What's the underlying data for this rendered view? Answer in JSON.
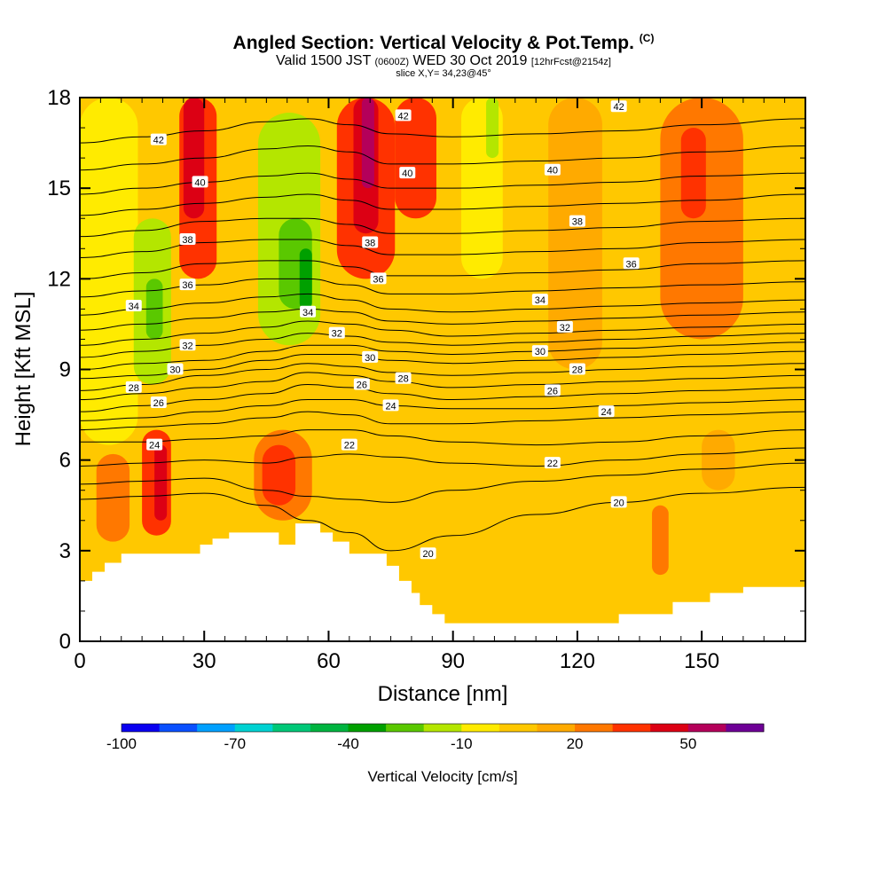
{
  "header": {
    "title": "Angled Section: Vertical Velocity & Pot.Temp.",
    "title_suffix": "(C)",
    "valid_prefix": "Valid 1500 JST",
    "valid_utc": "(0600Z)",
    "valid_date": "WED 30 Oct 2019",
    "valid_fcst": "[12hrFcst@2154z]",
    "slice": "slice X,Y= 34,23@45°"
  },
  "chart_data": {
    "type": "heatmap",
    "title": "Angled Section: Vertical Velocity & Pot.Temp. (C)",
    "xlabel": "Distance [nm]",
    "ylabel": "Height [Kft MSL]",
    "xlim": [
      0,
      175
    ],
    "ylim": [
      0,
      18
    ],
    "xticks": [
      0,
      30,
      60,
      90,
      120,
      150
    ],
    "yticks": [
      0,
      3,
      6,
      9,
      12,
      15,
      18
    ],
    "grid": false,
    "colorbar": {
      "label": "Vertical Velocity [cm/s]",
      "tick_values": [
        -100,
        -70,
        -40,
        -10,
        20,
        50
      ],
      "tick_labels": [
        "-100",
        "-70",
        "-40",
        "-10",
        "20",
        "50"
      ],
      "bins": [
        -100,
        -90,
        -80,
        -70,
        -60,
        -50,
        -40,
        -30,
        -20,
        -10,
        0,
        10,
        20,
        30,
        40,
        50,
        60
      ],
      "colors": [
        "#0a00f0",
        "#0a50ff",
        "#00a0ff",
        "#00d2d2",
        "#00c878",
        "#00b440",
        "#00a000",
        "#5ac800",
        "#b4e600",
        "#ffeb00",
        "#ffc800",
        "#ffaa00",
        "#ff7800",
        "#ff3200",
        "#dc0014",
        "#b4005a",
        "#6e0096"
      ]
    },
    "w_field": {
      "background": 0,
      "cells": [
        {
          "x": [
            0,
            175
          ],
          "z": [
            0,
            18
          ],
          "w": 0
        },
        {
          "x": [
            0,
            14
          ],
          "z": [
            6.5,
            18
          ],
          "w": -10
        },
        {
          "x": [
            13,
            22
          ],
          "z": [
            8.5,
            14
          ],
          "w": -20
        },
        {
          "x": [
            16,
            20
          ],
          "z": [
            10,
            12
          ],
          "w": -30
        },
        {
          "x": [
            24,
            33
          ],
          "z": [
            12,
            18
          ],
          "w": 30
        },
        {
          "x": [
            25,
            30
          ],
          "z": [
            14,
            18
          ],
          "w": 40
        },
        {
          "x": [
            43,
            58
          ],
          "z": [
            9.8,
            17.5
          ],
          "w": -20
        },
        {
          "x": [
            48,
            56
          ],
          "z": [
            11,
            14
          ],
          "w": -30
        },
        {
          "x": [
            53,
            56
          ],
          "z": [
            11,
            13
          ],
          "w": -40
        },
        {
          "x": [
            62,
            76
          ],
          "z": [
            12,
            18
          ],
          "w": 30
        },
        {
          "x": [
            66,
            72
          ],
          "z": [
            13.5,
            18
          ],
          "w": 40
        },
        {
          "x": [
            68,
            71
          ],
          "z": [
            15,
            18
          ],
          "w": 50
        },
        {
          "x": [
            76,
            86
          ],
          "z": [
            14,
            18
          ],
          "w": 30
        },
        {
          "x": [
            92,
            102
          ],
          "z": [
            12,
            18
          ],
          "w": -10
        },
        {
          "x": [
            98,
            101
          ],
          "z": [
            16,
            18
          ],
          "w": -20
        },
        {
          "x": [
            113,
            126
          ],
          "z": [
            9,
            18
          ],
          "w": 10
        },
        {
          "x": [
            140,
            160
          ],
          "z": [
            10,
            18
          ],
          "w": 20
        },
        {
          "x": [
            145,
            151
          ],
          "z": [
            14,
            17
          ],
          "w": 30
        },
        {
          "x": [
            4,
            12
          ],
          "z": [
            3.3,
            6.2
          ],
          "w": 20
        },
        {
          "x": [
            15,
            22
          ],
          "z": [
            3.5,
            7
          ],
          "w": 30
        },
        {
          "x": [
            18,
            21
          ],
          "z": [
            4,
            6.5
          ],
          "w": 40
        },
        {
          "x": [
            42,
            56
          ],
          "z": [
            4,
            7
          ],
          "w": 20
        },
        {
          "x": [
            44,
            52
          ],
          "z": [
            4.5,
            6.5
          ],
          "w": 30
        },
        {
          "x": [
            138,
            142
          ],
          "z": [
            2.2,
            4.5
          ],
          "w": 20
        },
        {
          "x": [
            150,
            158
          ],
          "z": [
            5,
            7
          ],
          "w": 10
        }
      ]
    },
    "terrain_kft": {
      "x": [
        0,
        3,
        3,
        6,
        6,
        10,
        10,
        29,
        29,
        32,
        32,
        36,
        36,
        48,
        48,
        52,
        52,
        58,
        58,
        61,
        61,
        65,
        65,
        74,
        74,
        77,
        77,
        80,
        80,
        82,
        82,
        85,
        85,
        88,
        88,
        130,
        130,
        143,
        143,
        152,
        152,
        160,
        160,
        175
      ],
      "z": [
        2,
        2,
        2.3,
        2.3,
        2.6,
        2.6,
        2.9,
        2.9,
        3.2,
        3.2,
        3.4,
        3.4,
        3.6,
        3.6,
        3.2,
        3.2,
        3.9,
        3.9,
        3.6,
        3.6,
        3.3,
        3.3,
        2.9,
        2.9,
        2.5,
        2.5,
        2.0,
        2.0,
        1.6,
        1.6,
        1.2,
        1.2,
        0.9,
        0.9,
        0.6,
        0.6,
        0.9,
        0.9,
        1.3,
        1.3,
        1.6,
        1.6,
        1.8,
        1.8
      ]
    },
    "theta_contours_c": {
      "levels": [
        20,
        21,
        22,
        23,
        24,
        25,
        26,
        27,
        28,
        29,
        30,
        31,
        32,
        33,
        34,
        35,
        36,
        37,
        38,
        39,
        40,
        41,
        42
      ],
      "x": [
        0,
        15,
        30,
        45,
        55,
        65,
        75,
        90,
        110,
        130,
        150,
        175
      ],
      "heights_kft": [
        [
          4.7,
          4.8,
          4.9,
          4.5,
          4.0,
          3.6,
          3.0,
          3.5,
          4.2,
          4.6,
          4.9,
          5.1
        ],
        [
          5.2,
          5.3,
          5.4,
          5.0,
          4.8,
          4.7,
          4.6,
          5.0,
          5.3,
          5.5,
          5.7,
          5.9
        ],
        [
          5.8,
          5.9,
          6.0,
          5.9,
          6.1,
          6.2,
          6.1,
          5.9,
          5.8,
          6.0,
          6.2,
          6.4
        ],
        [
          6.6,
          6.6,
          6.7,
          6.8,
          7.0,
          7.0,
          6.8,
          6.6,
          6.5,
          6.6,
          6.8,
          7.0
        ],
        [
          7.0,
          7.1,
          7.2,
          7.4,
          7.6,
          7.5,
          7.2,
          7.2,
          7.3,
          7.4,
          7.5,
          7.6
        ],
        [
          7.3,
          7.4,
          7.6,
          7.8,
          8.0,
          8.0,
          7.8,
          7.7,
          7.7,
          7.8,
          7.9,
          8.0
        ],
        [
          7.6,
          7.8,
          8.0,
          8.2,
          8.5,
          8.4,
          8.2,
          8.0,
          8.1,
          8.2,
          8.3,
          8.4
        ],
        [
          8.0,
          8.2,
          8.4,
          8.6,
          8.9,
          8.8,
          8.6,
          8.4,
          8.5,
          8.6,
          8.7,
          8.8
        ],
        [
          8.3,
          8.5,
          8.8,
          9.0,
          9.2,
          9.1,
          8.9,
          8.8,
          8.9,
          9.0,
          9.1,
          9.2
        ],
        [
          8.7,
          8.8,
          9.0,
          9.3,
          9.5,
          9.5,
          9.3,
          9.2,
          9.3,
          9.4,
          9.5,
          9.6
        ],
        [
          9.0,
          9.2,
          9.3,
          9.6,
          9.8,
          9.8,
          9.6,
          9.5,
          9.6,
          9.7,
          9.8,
          9.9
        ],
        [
          9.4,
          9.6,
          9.8,
          10.0,
          10.2,
          10.1,
          9.9,
          9.8,
          9.9,
          10.0,
          10.1,
          10.2
        ],
        [
          9.8,
          10.0,
          10.2,
          10.4,
          10.6,
          10.5,
          10.3,
          10.1,
          10.2,
          10.3,
          10.4,
          10.5
        ],
        [
          10.3,
          10.5,
          10.7,
          10.9,
          11.0,
          10.9,
          10.6,
          10.5,
          10.6,
          10.7,
          10.8,
          10.9
        ],
        [
          10.8,
          11.0,
          11.2,
          11.4,
          11.5,
          11.3,
          11.0,
          10.9,
          11.0,
          11.1,
          11.2,
          11.3
        ],
        [
          11.4,
          11.6,
          11.8,
          12.0,
          12.0,
          11.8,
          11.5,
          11.5,
          11.6,
          11.7,
          11.8,
          11.9
        ],
        [
          12.0,
          12.2,
          12.5,
          12.6,
          12.6,
          12.4,
          12.1,
          12.1,
          12.2,
          12.3,
          12.5,
          12.6
        ],
        [
          12.7,
          12.9,
          13.2,
          13.3,
          13.3,
          13.1,
          12.8,
          12.8,
          12.9,
          13.0,
          13.2,
          13.3
        ],
        [
          13.4,
          13.6,
          13.9,
          14.0,
          14.0,
          13.8,
          13.5,
          13.5,
          13.6,
          13.7,
          13.9,
          14.0
        ],
        [
          14.1,
          14.3,
          14.5,
          14.7,
          14.8,
          14.6,
          14.3,
          14.3,
          14.4,
          14.5,
          14.6,
          14.8
        ],
        [
          14.8,
          15.0,
          15.2,
          15.4,
          15.5,
          15.3,
          15.0,
          15.0,
          15.1,
          15.2,
          15.4,
          15.5
        ],
        [
          15.6,
          15.8,
          16.0,
          16.3,
          16.4,
          16.2,
          15.8,
          15.8,
          15.9,
          16.0,
          16.2,
          16.4
        ],
        [
          16.5,
          16.7,
          16.9,
          17.2,
          17.3,
          17.1,
          16.8,
          16.7,
          16.8,
          16.9,
          17.1,
          17.3
        ]
      ]
    },
    "contour_labels": [
      {
        "text": "42",
        "x": 19,
        "z": 16.6
      },
      {
        "text": "42",
        "x": 78,
        "z": 17.4
      },
      {
        "text": "42",
        "x": 130,
        "z": 17.7
      },
      {
        "text": "40",
        "x": 29,
        "z": 15.2
      },
      {
        "text": "40",
        "x": 79,
        "z": 15.5
      },
      {
        "text": "40",
        "x": 114,
        "z": 15.6
      },
      {
        "text": "38",
        "x": 26,
        "z": 13.3
      },
      {
        "text": "38",
        "x": 70,
        "z": 13.2
      },
      {
        "text": "38",
        "x": 120,
        "z": 13.9
      },
      {
        "text": "36",
        "x": 26,
        "z": 11.8
      },
      {
        "text": "36",
        "x": 72,
        "z": 12.0
      },
      {
        "text": "36",
        "x": 133,
        "z": 12.5
      },
      {
        "text": "34",
        "x": 13,
        "z": 11.1
      },
      {
        "text": "34",
        "x": 55,
        "z": 10.9
      },
      {
        "text": "34",
        "x": 111,
        "z": 11.3
      },
      {
        "text": "32",
        "x": 26,
        "z": 9.8
      },
      {
        "text": "32",
        "x": 62,
        "z": 10.2
      },
      {
        "text": "32",
        "x": 117,
        "z": 10.4
      },
      {
        "text": "30",
        "x": 23,
        "z": 9.0
      },
      {
        "text": "30",
        "x": 70,
        "z": 9.4
      },
      {
        "text": "30",
        "x": 111,
        "z": 9.6
      },
      {
        "text": "28",
        "x": 13,
        "z": 8.4
      },
      {
        "text": "28",
        "x": 78,
        "z": 8.7
      },
      {
        "text": "28",
        "x": 120,
        "z": 9.0
      },
      {
        "text": "26",
        "x": 19,
        "z": 7.9
      },
      {
        "text": "26",
        "x": 68,
        "z": 8.5
      },
      {
        "text": "26",
        "x": 114,
        "z": 8.3
      },
      {
        "text": "24",
        "x": 18,
        "z": 6.5
      },
      {
        "text": "24",
        "x": 75,
        "z": 7.8
      },
      {
        "text": "24",
        "x": 127,
        "z": 7.6
      },
      {
        "text": "22",
        "x": 65,
        "z": 6.5
      },
      {
        "text": "22",
        "x": 114,
        "z": 5.9
      },
      {
        "text": "20",
        "x": 130,
        "z": 4.6
      },
      {
        "text": "20",
        "x": 84,
        "z": 2.9
      }
    ]
  }
}
